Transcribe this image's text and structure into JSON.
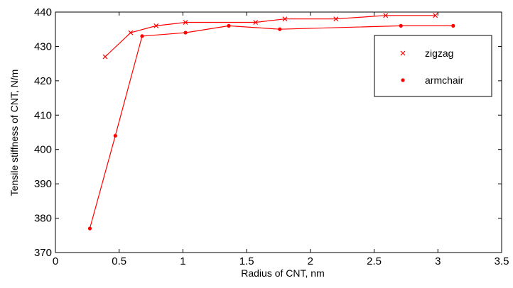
{
  "chart_data": {
    "type": "line",
    "title": "",
    "xlabel": "Radius of CNT, nm",
    "ylabel": "Tensile stiffness of CNT, N/m",
    "xlim": [
      0,
      3.5
    ],
    "ylim": [
      370,
      440
    ],
    "xticks": [
      0,
      0.5,
      1,
      1.5,
      2,
      2.5,
      3,
      3.5
    ],
    "yticks": [
      370,
      380,
      390,
      400,
      410,
      420,
      430,
      440
    ],
    "xtick_labels": [
      "0",
      "0.5",
      "1",
      "1.5",
      "2",
      "2.5",
      "3",
      "3.5"
    ],
    "ytick_labels": [
      "370",
      "380",
      "390",
      "400",
      "410",
      "420",
      "430",
      "440"
    ],
    "grid": false,
    "legend_position": "top-right",
    "series": [
      {
        "name": "zigzag",
        "marker": "x",
        "color": "#ff0000",
        "x": [
          0.39,
          0.59,
          0.79,
          1.02,
          1.57,
          1.8,
          2.2,
          2.59,
          2.98
        ],
        "y": [
          427,
          434,
          436,
          437,
          437,
          438,
          438,
          439,
          439
        ]
      },
      {
        "name": "armchair",
        "marker": "dot",
        "color": "#ff0000",
        "x": [
          0.27,
          0.47,
          0.68,
          1.02,
          1.36,
          1.76,
          2.71,
          3.12
        ],
        "y": [
          377,
          404,
          433,
          434,
          436,
          435,
          436,
          436
        ]
      }
    ]
  }
}
